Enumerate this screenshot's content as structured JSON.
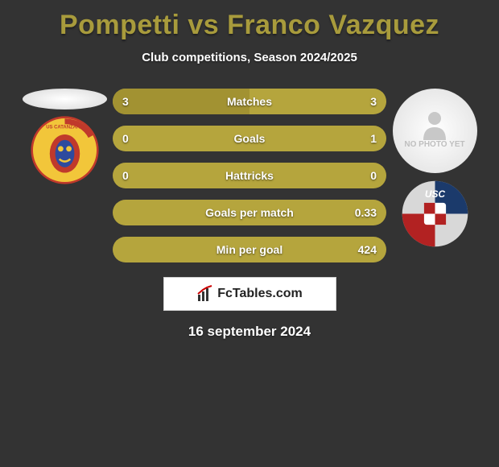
{
  "title": "Pompetti vs Franco Vazquez",
  "subtitle": "Club competitions, Season 2024/2025",
  "date": "16 september 2024",
  "watermark": "FcTables.com",
  "colors": {
    "background": "#333333",
    "title": "#a89b3c",
    "bar_left": "#a29232",
    "bar_right": "#b5a53d",
    "bar_empty": "#5a5a5a",
    "text": "#ffffff"
  },
  "fontsize": {
    "title": 34,
    "subtitle": 15,
    "bar_label": 14,
    "date": 17
  },
  "player_left": {
    "name": "Pompetti",
    "photo": "none",
    "club": {
      "name": "US Catanzaro",
      "badge_bg": "#f2c63a",
      "badge_accent1": "#c0392b",
      "badge_accent2": "#2e4a9e",
      "badge_text": "US CATANZARO"
    }
  },
  "player_right": {
    "name": "Franco Vazquez",
    "photo": "none",
    "no_photo_label": "NO PHOTO YET",
    "club": {
      "name": "US Cremonese",
      "badge_bg": "#d8d8d8",
      "badge_accent1": "#b22222",
      "badge_accent2": "#1b3a6b",
      "badge_text": "USC"
    }
  },
  "bars": [
    {
      "label": "Matches",
      "left": "3",
      "right": "3",
      "left_pct": 50,
      "right_pct": 50
    },
    {
      "label": "Goals",
      "left": "0",
      "right": "1",
      "left_pct": 0,
      "right_pct": 100
    },
    {
      "label": "Hattricks",
      "left": "0",
      "right": "0",
      "left_pct": 0,
      "right_pct": 0
    },
    {
      "label": "Goals per match",
      "left": "",
      "right": "0.33",
      "left_pct": 0,
      "right_pct": 100
    },
    {
      "label": "Min per goal",
      "left": "",
      "right": "424",
      "left_pct": 0,
      "right_pct": 100
    }
  ]
}
